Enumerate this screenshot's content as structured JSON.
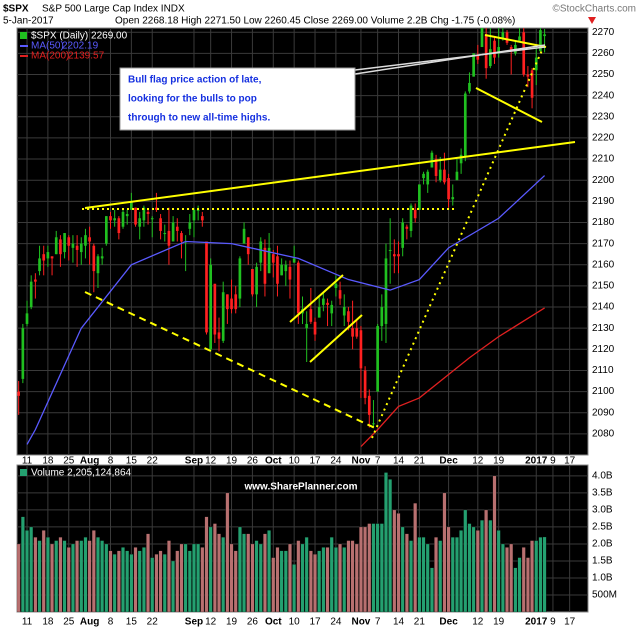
{
  "chart_data": {
    "type": "candlestick",
    "symbol": "$SPX",
    "title": "S&P 500 Large Cap Index INDX",
    "date": "5-Jan-2017",
    "quote": "Open 2268.18 High 2271.50 Low 2260.45 Close 2269.00 Volume 2.2B Chg -1.75 (-0.08%)",
    "source": "©StockCharts.com",
    "price_legend": "$SPX (Daily) 2269.00",
    "volume_legend": "Volume 2,205,124,864",
    "watermark": "www.SharePlanner.com",
    "annotation": [
      "Bull flag price action of late,",
      "looking for the bulls to pop",
      "through to new all-time highs."
    ],
    "up_color": "#20c020",
    "down_color": "#ff2020",
    "volume_up_color": "#24a070",
    "volume_down_color": "#b87070",
    "grid": true,
    "xlim": [
      -0.4,
      136.4
    ],
    "ylim": [
      2070,
      2272
    ],
    "yticks": [
      2080,
      2090,
      2100,
      2110,
      2120,
      2130,
      2140,
      2150,
      2160,
      2170,
      2180,
      2190,
      2200,
      2210,
      2220,
      2230,
      2240,
      2250,
      2260,
      2270
    ],
    "volume_ylim": [
      0,
      4.32
    ],
    "volume_yticks": [
      {
        "value": 0.5,
        "label": "500M"
      },
      {
        "value": 1,
        "label": "1.0B"
      },
      {
        "value": 1.5,
        "label": "1.5B"
      },
      {
        "value": 2,
        "label": "2.0B"
      },
      {
        "value": 2.5,
        "label": "2.5B"
      },
      {
        "value": 3,
        "label": "3.0B"
      },
      {
        "value": 3.5,
        "label": "3.5B"
      },
      {
        "value": 4,
        "label": "4.0B"
      }
    ],
    "xticks": [
      {
        "value": 2,
        "label": "11"
      },
      {
        "value": 7,
        "label": "18"
      },
      {
        "value": 12,
        "label": "25"
      },
      {
        "value": 17,
        "label": "Aug"
      },
      {
        "value": 22,
        "label": "8"
      },
      {
        "value": 27,
        "label": "15"
      },
      {
        "value": 32,
        "label": "22"
      },
      {
        "value": 42,
        "label": "Sep"
      },
      {
        "value": 46,
        "label": "12"
      },
      {
        "value": 51,
        "label": "19"
      },
      {
        "value": 56,
        "label": "26"
      },
      {
        "value": 61,
        "label": "Oct"
      },
      {
        "value": 66,
        "label": "10"
      },
      {
        "value": 71,
        "label": "17"
      },
      {
        "value": 76,
        "label": "24"
      },
      {
        "value": 82,
        "label": "Nov"
      },
      {
        "value": 86,
        "label": "7"
      },
      {
        "value": 91,
        "label": "14"
      },
      {
        "value": 96,
        "label": "21"
      },
      {
        "value": 103,
        "label": "Dec"
      },
      {
        "value": 110,
        "label": "12"
      },
      {
        "value": 115,
        "label": "19"
      },
      {
        "value": 124,
        "label": "2017"
      },
      {
        "value": 128,
        "label": "9"
      },
      {
        "value": 132,
        "label": "17"
      }
    ],
    "candles": [
      [
        2100,
        2105,
        2089,
        2098
      ],
      [
        2106,
        2132,
        2104,
        2130
      ],
      [
        2132,
        2143,
        2131,
        2137
      ],
      [
        2140,
        2155,
        2139,
        2152
      ],
      [
        2153,
        2156,
        2144,
        2152
      ],
      [
        2157,
        2169,
        2155,
        2163
      ],
      [
        2165,
        2169,
        2155,
        2162
      ],
      [
        2163,
        2169,
        2159,
        2166
      ],
      [
        2164,
        2164,
        2155,
        2163
      ],
      [
        2165,
        2176,
        2165,
        2173
      ],
      [
        2172,
        2174,
        2159,
        2165
      ],
      [
        2166,
        2175,
        2163,
        2175
      ],
      [
        2173,
        2174,
        2162,
        2169
      ],
      [
        2168,
        2174,
        2161,
        2170
      ],
      [
        2169,
        2174,
        2159,
        2167
      ],
      [
        2166,
        2173,
        2160,
        2170
      ],
      [
        2169,
        2177,
        2163,
        2174
      ],
      [
        2173,
        2178,
        2160,
        2171
      ],
      [
        2169,
        2170,
        2147,
        2157
      ],
      [
        2156,
        2165,
        2149,
        2164
      ],
      [
        2163,
        2168,
        2160,
        2164
      ],
      [
        2170,
        2183,
        2169,
        2183
      ],
      [
        2183,
        2185,
        2177,
        2181
      ],
      [
        2181,
        2186,
        2178,
        2182
      ],
      [
        2182,
        2183,
        2172,
        2175
      ],
      [
        2178,
        2186,
        2177,
        2185
      ],
      [
        2183,
        2186,
        2179,
        2184
      ],
      [
        2186,
        2194,
        2186,
        2190
      ],
      [
        2187,
        2187,
        2178,
        2179
      ],
      [
        2178,
        2185,
        2172,
        2182
      ],
      [
        2181,
        2188,
        2178,
        2187
      ],
      [
        2185,
        2186,
        2179,
        2184
      ],
      [
        2182,
        2183,
        2173,
        2182
      ],
      [
        2187,
        2194,
        2185,
        2186
      ],
      [
        2182,
        2184,
        2172,
        2176
      ],
      [
        2175,
        2179,
        2171,
        2175
      ],
      [
        2176,
        2187,
        2160,
        2169
      ],
      [
        2171,
        2183,
        2171,
        2180
      ],
      [
        2178,
        2182,
        2171,
        2176
      ],
      [
        2175,
        2176,
        2163,
        2171
      ],
      [
        2171,
        2174,
        2157,
        2171
      ],
      [
        2177,
        2184,
        2174,
        2180
      ],
      [
        2181,
        2187,
        2173,
        2186
      ],
      [
        2186,
        2188,
        2181,
        2186
      ],
      [
        2183,
        2185,
        2178,
        2181
      ],
      [
        2171,
        2171,
        2127,
        2128
      ],
      [
        2120,
        2163,
        2119,
        2160
      ],
      [
        2151,
        2151,
        2123,
        2127
      ],
      [
        2128,
        2135,
        2119,
        2125
      ],
      [
        2124,
        2152,
        2123,
        2147
      ],
      [
        2146,
        2146,
        2132,
        2139
      ],
      [
        2144,
        2153,
        2137,
        2139
      ],
      [
        2146,
        2150,
        2137,
        2139
      ],
      [
        2144,
        2164,
        2140,
        2163
      ],
      [
        2170,
        2180,
        2170,
        2177
      ],
      [
        2173,
        2173,
        2160,
        2165
      ],
      [
        2158,
        2158,
        2145,
        2146
      ],
      [
        2146,
        2161,
        2140,
        2159
      ],
      [
        2161,
        2173,
        2157,
        2171
      ],
      [
        2168,
        2172,
        2145,
        2151
      ],
      [
        2156,
        2175,
        2156,
        2168
      ],
      [
        2165,
        2167,
        2154,
        2161
      ],
      [
        2164,
        2169,
        2145,
        2151
      ],
      [
        2155,
        2163,
        2155,
        2160
      ],
      [
        2157,
        2162,
        2150,
        2160
      ],
      [
        2159,
        2162,
        2144,
        2153
      ],
      [
        2161,
        2169,
        2161,
        2163
      ],
      [
        2161,
        2162,
        2132,
        2137
      ],
      [
        2137,
        2145,
        2132,
        2139
      ],
      [
        2130,
        2138,
        2114,
        2132
      ],
      [
        2139,
        2149,
        2132,
        2133
      ],
      [
        2133,
        2135,
        2124,
        2127
      ],
      [
        2135,
        2145,
        2135,
        2140
      ],
      [
        2141,
        2147,
        2138,
        2144
      ],
      [
        2142,
        2144,
        2131,
        2141
      ],
      [
        2137,
        2143,
        2131,
        2141
      ],
      [
        2149,
        2155,
        2145,
        2151
      ],
      [
        2148,
        2152,
        2141,
        2144
      ],
      [
        2136,
        2146,
        2131,
        2140
      ],
      [
        2138,
        2140,
        2129,
        2133
      ],
      [
        2130,
        2143,
        2120,
        2126
      ],
      [
        2130,
        2134,
        2125,
        2126
      ],
      [
        2129,
        2131,
        2097,
        2111
      ],
      [
        2110,
        2112,
        2094,
        2097
      ],
      [
        2098,
        2101,
        2083,
        2089
      ],
      [
        2085,
        2096,
        2083,
        2085
      ],
      [
        2100,
        2132,
        2100,
        2131
      ],
      [
        2131,
        2146,
        2124,
        2140
      ],
      [
        2132,
        2170,
        2123,
        2163
      ],
      [
        2167,
        2182,
        2151,
        2167
      ],
      [
        2165,
        2172,
        2156,
        2164
      ],
      [
        2165,
        2171,
        2156,
        2164
      ],
      [
        2168,
        2182,
        2164,
        2180
      ],
      [
        2178,
        2179,
        2172,
        2177
      ],
      [
        2176,
        2189,
        2173,
        2188
      ],
      [
        2186,
        2189,
        2180,
        2182
      ],
      [
        2186,
        2198,
        2186,
        2198
      ],
      [
        2201,
        2204,
        2198,
        2203
      ],
      [
        2198,
        2205,
        2194,
        2204
      ],
      [
        2206,
        2214,
        2206,
        2213
      ],
      [
        2210,
        2212,
        2199,
        2202
      ],
      [
        2200,
        2211,
        2199,
        2205
      ],
      [
        2205,
        2213,
        2198,
        2199
      ],
      [
        2201,
        2203,
        2187,
        2191
      ],
      [
        2191,
        2198,
        2188,
        2192
      ],
      [
        2200,
        2210,
        2200,
        2204
      ],
      [
        2208,
        2215,
        2203,
        2212
      ],
      [
        2211,
        2242,
        2209,
        2241
      ],
      [
        2242,
        2251,
        2241,
        2246
      ],
      [
        2249,
        2260,
        2249,
        2260
      ],
      [
        2259,
        2264,
        2255,
        2257
      ],
      [
        2263,
        2277,
        2263,
        2272
      ],
      [
        2269,
        2276,
        2248,
        2253
      ],
      [
        2254,
        2272,
        2253,
        2262
      ],
      [
        2266,
        2268,
        2255,
        2258
      ],
      [
        2260,
        2272,
        2258,
        2263
      ],
      [
        2267,
        2277,
        2266,
        2270
      ],
      [
        2270,
        2271,
        2264,
        2265
      ],
      [
        2263,
        2264,
        2250,
        2261
      ],
      [
        2260,
        2266,
        2259,
        2264
      ],
      [
        2266,
        2274,
        2266,
        2268
      ],
      [
        2270,
        2272,
        2249,
        2250
      ],
      [
        2250,
        2254,
        2244,
        2249
      ],
      [
        2252,
        2253,
        2234,
        2239
      ],
      [
        2252,
        2264,
        2245,
        2258
      ],
      [
        2261,
        2274,
        2261,
        2271
      ],
      [
        2268.18,
        2271.5,
        2260.45,
        2269
      ]
    ],
    "volume": [
      2.0,
      2.8,
      2.4,
      2.5,
      2.2,
      2.1,
      2.4,
      2.2,
      2.0,
      2.1,
      2.2,
      2.1,
      1.9,
      2.0,
      2.1,
      2.1,
      2.2,
      2.1,
      2.4,
      2.2,
      2.1,
      2.0,
      1.8,
      1.7,
      1.8,
      1.9,
      1.8,
      1.7,
      1.9,
      1.8,
      1.9,
      2.3,
      1.6,
      1.7,
      1.8,
      1.7,
      2.1,
      1.5,
      1.8,
      2.0,
      2.0,
      1.8,
      2.0,
      2.0,
      1.9,
      2.8,
      2.5,
      2.6,
      2.3,
      2.2,
      3.5,
      2.0,
      1.8,
      2.5,
      2.3,
      2.3,
      2.0,
      2.1,
      2.0,
      2.3,
      2.4,
      1.6,
      1.9,
      1.8,
      1.8,
      2.0,
      1.4,
      2.1,
      2.0,
      2.2,
      1.8,
      1.7,
      1.8,
      1.9,
      1.9,
      2.2,
      1.9,
      2.0,
      1.9,
      2.1,
      2.1,
      2.0,
      2.5,
      2.5,
      2.6,
      2.6,
      2.6,
      2.6,
      4.1,
      3.9,
      3.0,
      2.9,
      2.5,
      2.3,
      2.1,
      3.2,
      2.2,
      2.2,
      2.0,
      1.3,
      2.2,
      2.1,
      3.5,
      2.5,
      2.2,
      2.2,
      2.4,
      3.0,
      2.6,
      2.5,
      2.4,
      2.7,
      3.0,
      2.7,
      4.0,
      2.4,
      2.0,
      1.9,
      2.0,
      1.3,
      1.6,
      1.9,
      1.6,
      2.1,
      2.1,
      2.2,
      2.205
    ],
    "series": [
      {
        "name": "MA(50)",
        "color": "#5a5aff",
        "x": [
          2,
          4,
          15,
          27,
          40,
          51,
          67,
          79,
          89,
          96,
          103,
          115,
          126
        ],
        "values": [
          2075,
          2082,
          2130,
          2160,
          2171,
          2170,
          2163,
          2153,
          2148,
          2153,
          2168,
          2182,
          2202.19
        ]
      },
      {
        "name": "MA(200)",
        "color": "#e02020",
        "x": [
          82,
          86,
          91,
          96,
          108,
          115,
          126
        ],
        "values": [
          2074,
          2082,
          2093,
          2097,
          2116,
          2126,
          2139.57
        ]
      }
    ]
  }
}
